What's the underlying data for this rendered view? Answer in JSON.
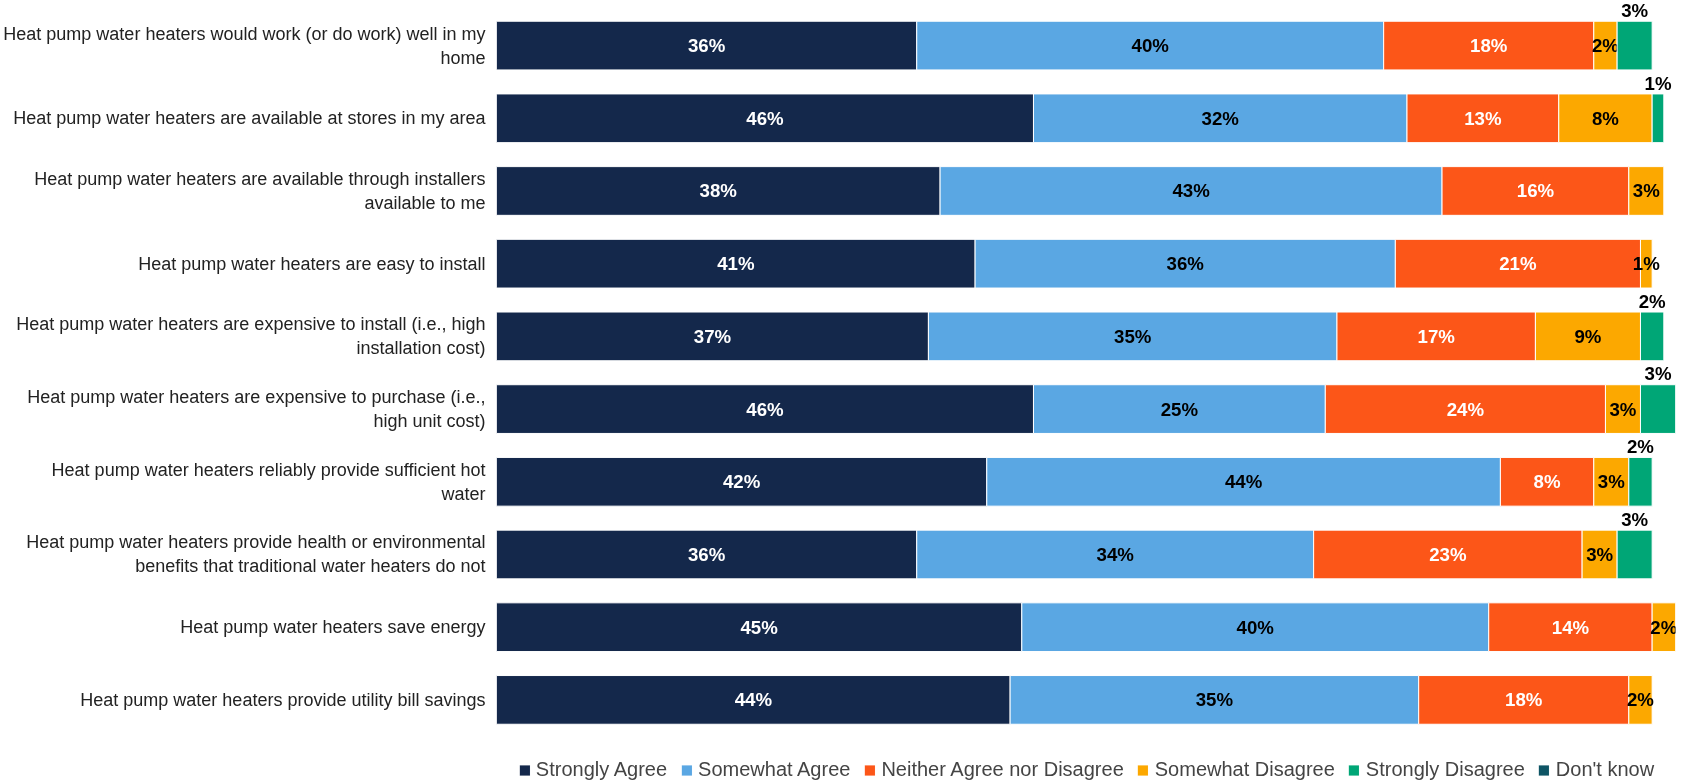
{
  "chart_data": {
    "type": "bar",
    "orientation": "horizontal",
    "stacked": true,
    "data_labels": true,
    "legend": "bottom",
    "grid": false,
    "categories": [
      "Heat pump water heaters would work (or do work) well in my home",
      "Heat pump water heaters are available at stores in my area",
      "Heat pump water heaters are available through installers available to me",
      "Heat pump water heaters are easy to install",
      "Heat pump water heaters are expensive to install (i.e., high installation cost)",
      "Heat pump water heaters are expensive to purchase (i.e., high unit cost)",
      "Heat pump water heaters reliably provide sufficient hot water",
      "Heat pump water heaters provide health or environmental benefits that traditional water heaters do not",
      "Heat pump water heaters save energy",
      "Heat pump water heaters provide utility bill savings"
    ],
    "series": [
      {
        "name": "Strongly Agree",
        "color": "#14284b",
        "values": [
          36,
          46,
          38,
          41,
          37,
          46,
          42,
          36,
          45,
          44
        ],
        "value_labels": [
          "36%",
          "46%",
          "38%",
          "41%",
          "37%",
          "46%",
          "42%",
          "36%",
          "45%",
          "44%"
        ]
      },
      {
        "name": "Somewhat Agree",
        "color": "#5aa7e3",
        "values": [
          40,
          32,
          43,
          36,
          35,
          25,
          44,
          34,
          40,
          35
        ],
        "value_labels": [
          "40%",
          "32%",
          "43%",
          "36%",
          "35%",
          "25%",
          "44%",
          "34%",
          "40%",
          "35%"
        ]
      },
      {
        "name": "Neither Agree nor Disagree",
        "color": "#fc5618",
        "values": [
          18,
          13,
          16,
          21,
          17,
          24,
          8,
          23,
          14,
          18
        ],
        "value_labels": [
          "18%",
          "13%",
          "16%",
          "21%",
          "17%",
          "24%",
          "8%",
          "23%",
          "14%",
          "18%"
        ]
      },
      {
        "name": "Somewhat Disagree",
        "color": "#fca800",
        "values": [
          2,
          8,
          3,
          1,
          9,
          3,
          3,
          3,
          2,
          2
        ],
        "value_labels": [
          "2%",
          "8%",
          "3%",
          "1%",
          "9%",
          "3%",
          "3%",
          "3%",
          "2%",
          "2%"
        ]
      },
      {
        "name": "Strongly Disagree",
        "color": "#00a676",
        "values": [
          3,
          1,
          null,
          null,
          2,
          3,
          2,
          3,
          null,
          null
        ],
        "value_labels": [
          "3%",
          "1%",
          null,
          null,
          "2%",
          "3%",
          "2%",
          "3%",
          null,
          null
        ]
      },
      {
        "name": "Don't know",
        "color": "#0e5565",
        "values": [
          null,
          null,
          null,
          null,
          null,
          null,
          null,
          null,
          null,
          null
        ]
      }
    ]
  }
}
